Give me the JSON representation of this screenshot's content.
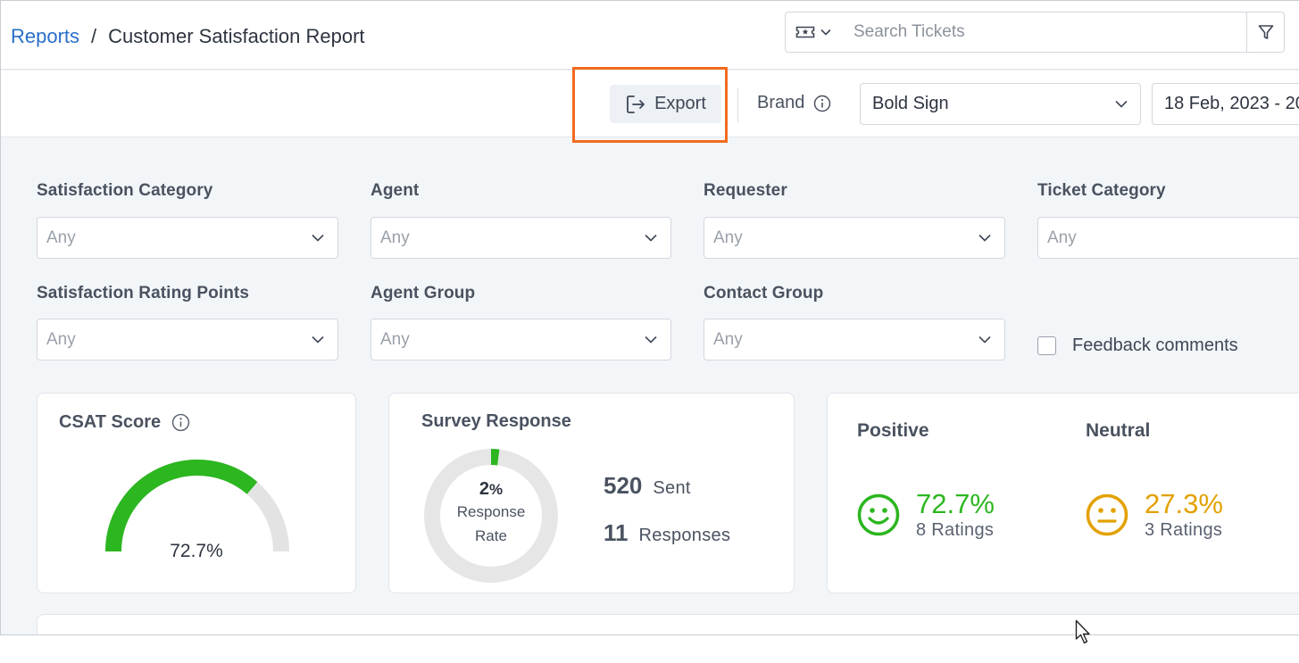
{
  "breadcrumb": {
    "root": "Reports",
    "separator": "/",
    "current": "Customer Satisfaction Report"
  },
  "search": {
    "placeholder": "Search Tickets",
    "icon_left": "ticket-icon",
    "icon_filter": "filter-icon"
  },
  "toolbar": {
    "export_label": "Export",
    "brand_label": "Brand",
    "brand_value": "Bold Sign",
    "date_value": "18 Feb, 2023 - 20"
  },
  "filters": {
    "satisfaction_category": {
      "label": "Satisfaction Category",
      "value": "Any"
    },
    "agent": {
      "label": "Agent",
      "value": "Any"
    },
    "requester": {
      "label": "Requester",
      "value": "Any"
    },
    "ticket_category": {
      "label": "Ticket Category",
      "value": "Any"
    },
    "satisfaction_rating_points": {
      "label": "Satisfaction Rating Points",
      "value": "Any"
    },
    "agent_group": {
      "label": "Agent Group",
      "value": "Any"
    },
    "contact_group": {
      "label": "Contact Group",
      "value": "Any"
    },
    "feedback_comments": {
      "label": "Feedback comments",
      "checked": false
    }
  },
  "csat": {
    "title": "CSAT Score",
    "value": "72.7%",
    "fraction": 0.727,
    "fill_color": "#2cb620",
    "track_color": "#e3e3e3"
  },
  "survey": {
    "title": "Survey Response",
    "rate_value": "2",
    "rate_unit": "%",
    "rate_fraction": 0.02,
    "rate_label_1": "Response",
    "rate_label_2": "Rate",
    "sent_count": "520",
    "sent_label": "Sent",
    "responses_count": "11",
    "responses_label": "Responses"
  },
  "sentiments": {
    "positive": {
      "title": "Positive",
      "percent": "72.7%",
      "ratings": "8 Ratings",
      "color": "#2cb620",
      "icon": "smile-icon"
    },
    "neutral": {
      "title": "Neutral",
      "percent": "27.3%",
      "ratings": "3 Ratings",
      "color": "#e3a100",
      "icon": "neutral-face-icon"
    }
  },
  "colors": {
    "accent": "#2a6fc9",
    "highlight": "#f26b1d"
  }
}
